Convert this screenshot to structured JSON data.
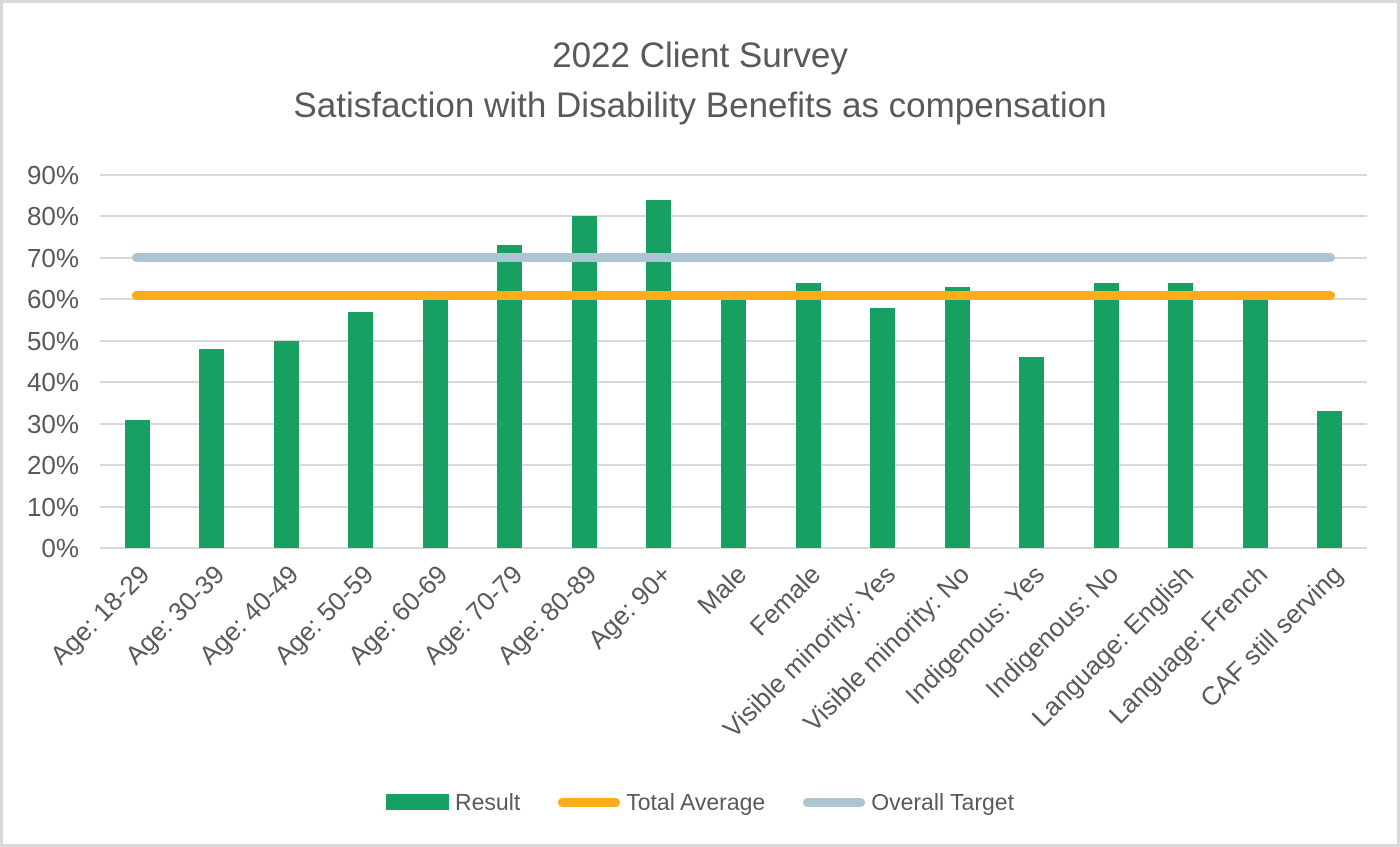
{
  "title": {
    "line1": "2022 Client Survey",
    "line2": "Satisfaction with Disability Benefits as compensation"
  },
  "chart_data": {
    "type": "bar",
    "title": "2022 Client Survey",
    "subtitle": "Satisfaction with Disability Benefits as compensation",
    "categories": [
      "Age: 18-29",
      "Age: 30-39",
      "Age: 40-49",
      "Age: 50-59",
      "Age: 60-69",
      "Age: 70-79",
      "Age: 80-89",
      "Age: 90+",
      "Male",
      "Female",
      "Visible minority: Yes",
      "Visible minority: No",
      "Indigenous: Yes",
      "Indigenous: No",
      "Language: English",
      "Language: French",
      "CAF still serving"
    ],
    "series": [
      {
        "name": "Result",
        "type": "bar",
        "color": "#17A061",
        "values": [
          31,
          48,
          50,
          57,
          60,
          73,
          80,
          84,
          62,
          64,
          58,
          63,
          46,
          64,
          64,
          60,
          33
        ]
      },
      {
        "name": "Total Average",
        "type": "line",
        "color": "#FBAC18",
        "value": 61
      },
      {
        "name": "Overall Target",
        "type": "line",
        "color": "#ADC5D0",
        "value": 70
      }
    ],
    "xlabel": "",
    "ylabel": "",
    "ylim": [
      0,
      90
    ],
    "ytick_values": [
      0,
      10,
      20,
      30,
      40,
      50,
      60,
      70,
      80,
      90
    ],
    "ytick_labels": [
      "0%",
      "10%",
      "20%",
      "30%",
      "40%",
      "50%",
      "60%",
      "70%",
      "80%",
      "90%"
    ],
    "grid": true,
    "legend_position": "bottom",
    "colors": {
      "text": "#595959",
      "gridline": "#D9D9D9",
      "border": "#D9D9D9",
      "background": "#FFFFFF"
    }
  }
}
